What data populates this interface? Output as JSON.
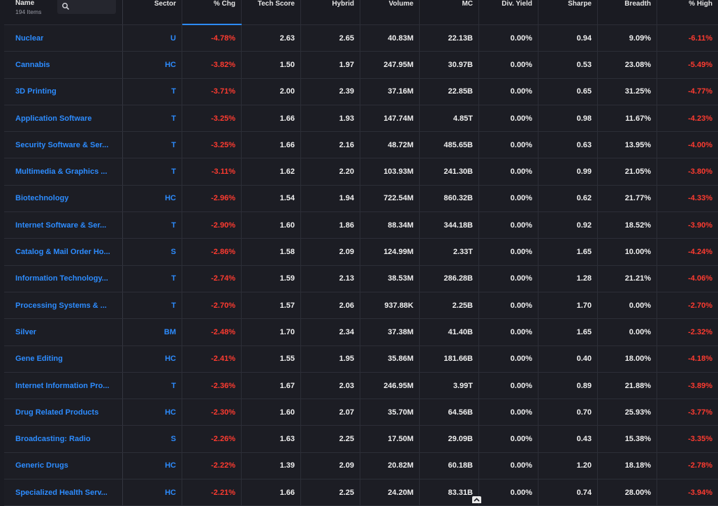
{
  "header": {
    "name_label": "Name",
    "items_count": "194 Items",
    "columns": {
      "sector": "Sector",
      "chg": "% Chg",
      "tech_score": "Tech Score",
      "hybrid": "Hybrid",
      "volume": "Volume",
      "mc": "MC",
      "div_yield": "Div. Yield",
      "sharpe": "Sharpe",
      "breadth": "Breadth",
      "pct_high": "% High"
    }
  },
  "search": {
    "icon": "search-icon",
    "placeholder": ""
  },
  "colors": {
    "link": "#2d8cff",
    "negative": "#ff3b30",
    "background": "#1a1b22"
  },
  "rows": [
    {
      "name": "Nuclear",
      "sector": "U",
      "chg": "-4.78%",
      "tech": "2.63",
      "hybrid": "2.65",
      "volume": "40.83M",
      "mc": "22.13B",
      "div": "0.00%",
      "sharpe": "0.94",
      "breadth": "9.09%",
      "high": "-6.11%"
    },
    {
      "name": "Cannabis",
      "sector": "HC",
      "chg": "-3.82%",
      "tech": "1.50",
      "hybrid": "1.97",
      "volume": "247.95M",
      "mc": "30.97B",
      "div": "0.00%",
      "sharpe": "0.53",
      "breadth": "23.08%",
      "high": "-5.49%"
    },
    {
      "name": "3D Printing",
      "sector": "T",
      "chg": "-3.71%",
      "tech": "2.00",
      "hybrid": "2.39",
      "volume": "37.16M",
      "mc": "22.85B",
      "div": "0.00%",
      "sharpe": "0.65",
      "breadth": "31.25%",
      "high": "-4.77%"
    },
    {
      "name": "Application Software",
      "sector": "T",
      "chg": "-3.25%",
      "tech": "1.66",
      "hybrid": "1.93",
      "volume": "147.74M",
      "mc": "4.85T",
      "div": "0.00%",
      "sharpe": "0.98",
      "breadth": "11.67%",
      "high": "-4.23%"
    },
    {
      "name": "Security Software & Ser...",
      "sector": "T",
      "chg": "-3.25%",
      "tech": "1.66",
      "hybrid": "2.16",
      "volume": "48.72M",
      "mc": "485.65B",
      "div": "0.00%",
      "sharpe": "0.63",
      "breadth": "13.95%",
      "high": "-4.00%"
    },
    {
      "name": "Multimedia & Graphics ...",
      "sector": "T",
      "chg": "-3.11%",
      "tech": "1.62",
      "hybrid": "2.20",
      "volume": "103.93M",
      "mc": "241.30B",
      "div": "0.00%",
      "sharpe": "0.99",
      "breadth": "21.05%",
      "high": "-3.80%"
    },
    {
      "name": "Biotechnology",
      "sector": "HC",
      "chg": "-2.96%",
      "tech": "1.54",
      "hybrid": "1.94",
      "volume": "722.54M",
      "mc": "860.32B",
      "div": "0.00%",
      "sharpe": "0.62",
      "breadth": "21.77%",
      "high": "-4.33%"
    },
    {
      "name": "Internet Software & Ser...",
      "sector": "T",
      "chg": "-2.90%",
      "tech": "1.60",
      "hybrid": "1.86",
      "volume": "88.34M",
      "mc": "344.18B",
      "div": "0.00%",
      "sharpe": "0.92",
      "breadth": "18.52%",
      "high": "-3.90%"
    },
    {
      "name": "Catalog & Mail Order Ho...",
      "sector": "S",
      "chg": "-2.86%",
      "tech": "1.58",
      "hybrid": "2.09",
      "volume": "124.99M",
      "mc": "2.33T",
      "div": "0.00%",
      "sharpe": "1.65",
      "breadth": "10.00%",
      "high": "-4.24%"
    },
    {
      "name": "Information Technology...",
      "sector": "T",
      "chg": "-2.74%",
      "tech": "1.59",
      "hybrid": "2.13",
      "volume": "38.53M",
      "mc": "286.28B",
      "div": "0.00%",
      "sharpe": "1.28",
      "breadth": "21.21%",
      "high": "-4.06%"
    },
    {
      "name": "Processing Systems & ...",
      "sector": "T",
      "chg": "-2.70%",
      "tech": "1.57",
      "hybrid": "2.06",
      "volume": "937.88K",
      "mc": "2.25B",
      "div": "0.00%",
      "sharpe": "1.70",
      "breadth": "0.00%",
      "high": "-2.70%"
    },
    {
      "name": "Silver",
      "sector": "BM",
      "chg": "-2.48%",
      "tech": "1.70",
      "hybrid": "2.34",
      "volume": "37.38M",
      "mc": "41.40B",
      "div": "0.00%",
      "sharpe": "1.65",
      "breadth": "0.00%",
      "high": "-2.32%"
    },
    {
      "name": "Gene Editing",
      "sector": "HC",
      "chg": "-2.41%",
      "tech": "1.55",
      "hybrid": "1.95",
      "volume": "35.86M",
      "mc": "181.66B",
      "div": "0.00%",
      "sharpe": "0.40",
      "breadth": "18.00%",
      "high": "-4.18%"
    },
    {
      "name": "Internet Information Pro...",
      "sector": "T",
      "chg": "-2.36%",
      "tech": "1.67",
      "hybrid": "2.03",
      "volume": "246.95M",
      "mc": "3.99T",
      "div": "0.00%",
      "sharpe": "0.89",
      "breadth": "21.88%",
      "high": "-3.89%"
    },
    {
      "name": "Drug Related Products",
      "sector": "HC",
      "chg": "-2.30%",
      "tech": "1.60",
      "hybrid": "2.07",
      "volume": "35.70M",
      "mc": "64.56B",
      "div": "0.00%",
      "sharpe": "0.70",
      "breadth": "25.93%",
      "high": "-3.77%"
    },
    {
      "name": "Broadcasting: Radio",
      "sector": "S",
      "chg": "-2.26%",
      "tech": "1.63",
      "hybrid": "2.25",
      "volume": "17.50M",
      "mc": "29.09B",
      "div": "0.00%",
      "sharpe": "0.43",
      "breadth": "15.38%",
      "high": "-3.35%"
    },
    {
      "name": "Generic Drugs",
      "sector": "HC",
      "chg": "-2.22%",
      "tech": "1.39",
      "hybrid": "2.09",
      "volume": "20.82M",
      "mc": "60.18B",
      "div": "0.00%",
      "sharpe": "1.20",
      "breadth": "18.18%",
      "high": "-2.78%"
    },
    {
      "name": "Specialized Health Serv...",
      "sector": "HC",
      "chg": "-2.21%",
      "tech": "1.66",
      "hybrid": "2.25",
      "volume": "24.20M",
      "mc": "83.31B",
      "div": "0.00%",
      "sharpe": "0.74",
      "breadth": "28.00%",
      "high": "-3.94%"
    }
  ]
}
